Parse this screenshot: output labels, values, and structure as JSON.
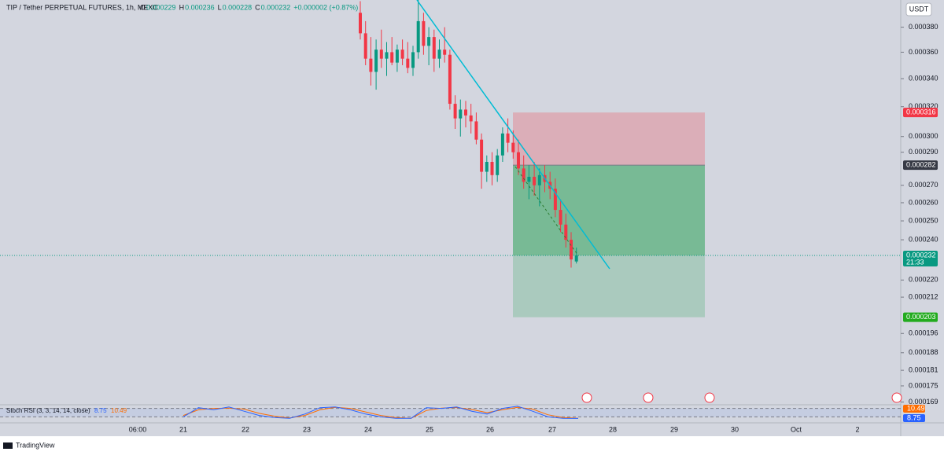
{
  "header": {
    "symbol": "TIP / Tether PERPETUAL FUTURES, 1h, MEXC",
    "ohlc": [
      {
        "key": "O",
        "value": 0.000229
      },
      {
        "key": "H",
        "value": 0.000236
      },
      {
        "key": "L",
        "value": 0.000228
      },
      {
        "key": "C",
        "value": 0.000232
      }
    ],
    "change": "+0.000002 (+0.87%)"
  },
  "currency_button": "USDT",
  "chart_data": {
    "type": "candlestick",
    "log_scale": true,
    "ylim": [
      0.000168,
      0.000403
    ],
    "yticks": [
      {
        "value": 0.00038,
        "label": "0.000380"
      },
      {
        "value": 0.00036,
        "label": "0.000360"
      },
      {
        "value": 0.00034,
        "label": "0.000340"
      },
      {
        "value": 0.00032,
        "label": "0.000320"
      },
      {
        "value": 0.0003,
        "label": "0.000300"
      },
      {
        "value": 0.00029,
        "label": "0.000290"
      },
      {
        "value": 0.00027,
        "label": "0.000270"
      },
      {
        "value": 0.00026,
        "label": "0.000260"
      },
      {
        "value": 0.00025,
        "label": "0.000250"
      },
      {
        "value": 0.00024,
        "label": "0.000240"
      },
      {
        "value": 0.00022,
        "label": "0.000220"
      },
      0.000212,
      0.000196,
      0.000188,
      0.000181,
      0.000175,
      0.000169
    ],
    "x_labels": [
      "06:00",
      "21",
      "22",
      "23",
      "24",
      "25",
      "26",
      "27",
      "28",
      "29",
      "30",
      "Oct",
      "2"
    ],
    "up_color": "#089981",
    "down_color": "#f23645",
    "open": [
      0.000392,
      0.000375,
      0.000355,
      0.000345,
      0.000362,
      0.000355,
      0.00036,
      0.000352,
      0.000362,
      0.000355,
      0.000348,
      0.00036,
      0.000385,
      0.000365,
      0.000372,
      0.000355,
      0.000362,
      0.000358,
      0.000322,
      0.000312,
      0.000318,
      0.000314,
      0.00031,
      0.000298,
      0.000278,
      0.000284,
      0.000276,
      0.000288,
      0.000302,
      0.000296,
      0.00029,
      0.00028,
      0.000272,
      0.000275,
      0.00027,
      0.000276,
      0.000272,
      0.000268,
      0.000256,
      0.000248,
      0.00024,
      0.000229
    ],
    "high": [
      0.000402,
      0.000385,
      0.000372,
      0.00037,
      0.000378,
      0.000368,
      0.000372,
      0.000366,
      0.00037,
      0.000368,
      0.000365,
      0.000403,
      0.000392,
      0.00038,
      0.000378,
      0.00037,
      0.00038,
      0.000362,
      0.000328,
      0.000325,
      0.000324,
      0.000322,
      0.000316,
      0.000302,
      0.000288,
      0.00029,
      0.000292,
      0.000306,
      0.000312,
      0.000304,
      0.000298,
      0.000288,
      0.000282,
      0.000284,
      0.00028,
      0.000282,
      0.000278,
      0.000274,
      0.000262,
      0.000254,
      0.000244,
      0.000236
    ],
    "low": [
      0.00037,
      0.00035,
      0.000335,
      0.000332,
      0.000348,
      0.000342,
      0.00035,
      0.000345,
      0.00035,
      0.000344,
      0.000342,
      0.000355,
      0.000358,
      0.00035,
      0.000345,
      0.000348,
      0.000352,
      0.000318,
      0.000305,
      0.0003,
      0.000306,
      0.000302,
      0.000295,
      0.000268,
      0.000272,
      0.00027,
      0.000272,
      0.000284,
      0.00029,
      0.000286,
      0.000276,
      0.000268,
      0.000262,
      0.000264,
      0.000258,
      0.000266,
      0.000262,
      0.000252,
      0.000244,
      0.000236,
      0.000226,
      0.000228
    ],
    "close": [
      0.000375,
      0.000355,
      0.000345,
      0.000362,
      0.000355,
      0.00036,
      0.000352,
      0.000362,
      0.000355,
      0.000348,
      0.00036,
      0.000385,
      0.000365,
      0.000372,
      0.000355,
      0.000362,
      0.000358,
      0.000322,
      0.000312,
      0.000318,
      0.000314,
      0.00031,
      0.000298,
      0.000278,
      0.000284,
      0.000276,
      0.000288,
      0.000302,
      0.000296,
      0.00029,
      0.00028,
      0.000272,
      0.000275,
      0.00027,
      0.000276,
      0.000272,
      0.000268,
      0.000256,
      0.000248,
      0.00024,
      0.00023,
      0.000232
    ],
    "position": {
      "stop": 0.000316,
      "entry": 0.000282,
      "current": 0.000232,
      "countdown": "21:33",
      "target": 0.000203
    }
  },
  "stoch_rsi": {
    "label": "Stoch RSI (3, 3, 14, 14, close)",
    "k_label": 8.75,
    "d_label": 10.49,
    "k_color": "#2962ff",
    "d_color": "#ff6d00",
    "ylim": [
      0,
      100
    ],
    "k": [
      20,
      85,
      70,
      90,
      60,
      30,
      15,
      10,
      40,
      85,
      90,
      70,
      40,
      20,
      10,
      10,
      85,
      80,
      90,
      60,
      40,
      80,
      95,
      60,
      20,
      10,
      8.75
    ],
    "d": [
      30,
      70,
      80,
      82,
      75,
      45,
      25,
      12,
      30,
      70,
      88,
      80,
      55,
      30,
      15,
      10,
      65,
      82,
      86,
      72,
      50,
      70,
      88,
      75,
      35,
      15,
      10.49
    ]
  },
  "footer": {
    "brand": "TradingView"
  }
}
